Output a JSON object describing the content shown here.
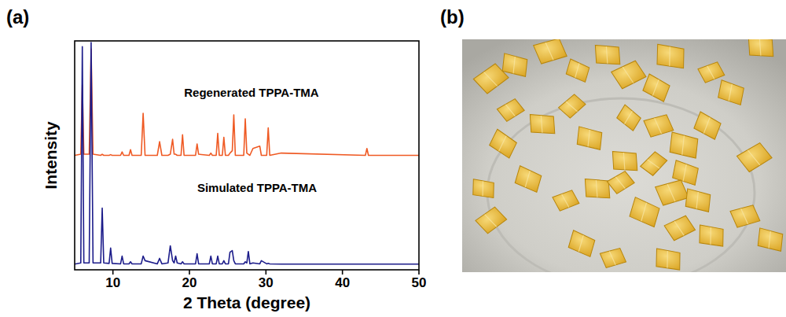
{
  "chart_data": {
    "type": "line",
    "panel_label": "(a)",
    "x_label": "2 Theta (degree)",
    "y_label": "Intensity",
    "x": [
      5,
      5.8,
      6.0,
      6.2,
      6.9,
      7.15,
      7.4,
      8.4,
      8.6,
      8.8,
      9.5,
      9.7,
      9.9,
      11.0,
      11.2,
      11.4,
      12.1,
      12.3,
      12.5,
      13.7,
      13.95,
      14.2,
      15.8,
      16.1,
      16.4,
      17.2,
      17.5,
      17.8,
      18.0,
      18.2,
      18.4,
      18.9,
      19.1,
      19.3,
      20.8,
      21.0,
      21.2,
      22.6,
      22.8,
      23.0,
      23.5,
      23.7,
      23.9,
      24.3,
      24.5,
      24.7,
      25.1,
      25.3,
      25.6,
      25.8,
      26.0,
      27.1,
      27.3,
      27.5,
      27.7,
      27.9,
      28.3,
      29.2,
      29.4,
      30.1,
      30.3,
      30.5,
      32.0,
      43.0,
      43.2,
      43.4,
      50
    ],
    "series": [
      {
        "name": "Regenerated TPPA-TMA",
        "color": "#ef5a24",
        "values": [
          50,
          50.5,
          80.7,
          50.5,
          50.5,
          96.5,
          50.5,
          50,
          50.5,
          50,
          50,
          50.3,
          50,
          50,
          51.5,
          50,
          50,
          52.5,
          50,
          50,
          68.4,
          50,
          50,
          56,
          50,
          50,
          50.5,
          57,
          50.5,
          50.5,
          50,
          50,
          59,
          50,
          50,
          55,
          50.5,
          50,
          51,
          50,
          50,
          59.6,
          50,
          50,
          57.9,
          50,
          50,
          51,
          52,
          67.7,
          50,
          50,
          66,
          51,
          50.5,
          50,
          53,
          54,
          50,
          50,
          62,
          50,
          51,
          50,
          53,
          50,
          50
        ]
      },
      {
        "name": "Simulated TPPA-TMA",
        "color": "#1c1c8a",
        "values": [
          2.5,
          3,
          97.5,
          3,
          3,
          99.3,
          3,
          3,
          27,
          3,
          2.8,
          9.5,
          2.8,
          2.6,
          6,
          2.6,
          2.6,
          3.5,
          2.6,
          2.6,
          6,
          4,
          2.6,
          5,
          2.6,
          3,
          10.5,
          4,
          3,
          6,
          3,
          2.6,
          3.5,
          2.6,
          2.6,
          7,
          2.6,
          2.6,
          6,
          2.6,
          2.6,
          6,
          2.6,
          2.6,
          4,
          2.6,
          2.6,
          7.7,
          8.4,
          4,
          2.6,
          2.6,
          3.5,
          3,
          8,
          2.6,
          3,
          2.6,
          4,
          2.6,
          2.8,
          2.6,
          2.5,
          2.5,
          2.5,
          2.5,
          2.5
        ]
      }
    ],
    "xlim": [
      5,
      50
    ],
    "xticks": [
      10,
      20,
      30,
      40,
      50
    ],
    "ylim": [
      0,
      100
    ],
    "tick_labels": "x",
    "grid": false
  },
  "photo": {
    "panel_label": "(b)"
  }
}
